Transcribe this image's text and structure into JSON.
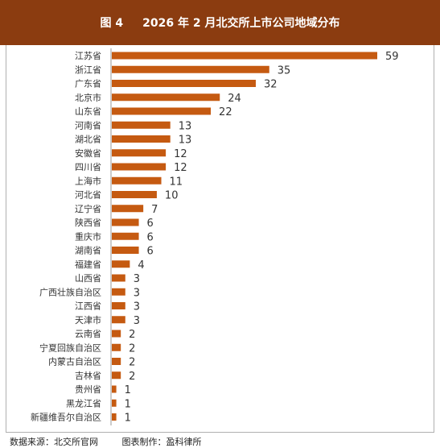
{
  "title": {
    "figure_label": "图 4",
    "text": "2026 年 2 月北交所上市公司地域分布"
  },
  "footer": {
    "source": "数据来源：北交所官网",
    "maker": "图表制作：盈科律所"
  },
  "colors": {
    "bar": "#c55a11",
    "banner": "#8b3c10"
  },
  "chart_data": {
    "type": "bar",
    "orientation": "horizontal",
    "categories": [
      "江苏省",
      "浙江省",
      "广东省",
      "北京市",
      "山东省",
      "河南省",
      "湖北省",
      "安徽省",
      "四川省",
      "上海市",
      "河北省",
      "辽宁省",
      "陕西省",
      "重庆市",
      "湖南省",
      "福建省",
      "山西省",
      "广西壮族自治区",
      "江西省",
      "天津市",
      "云南省",
      "宁夏回族自治区",
      "内蒙古自治区",
      "吉林省",
      "贵州省",
      "黑龙江省",
      "新疆维吾尔自治区"
    ],
    "values": [
      59,
      35,
      32,
      24,
      22,
      13,
      13,
      12,
      12,
      11,
      10,
      7,
      6,
      6,
      6,
      4,
      3,
      3,
      3,
      3,
      2,
      2,
      2,
      2,
      1,
      1,
      1
    ],
    "xlim": [
      0,
      59
    ],
    "data_labels": true,
    "grid": false,
    "legend": "none"
  }
}
